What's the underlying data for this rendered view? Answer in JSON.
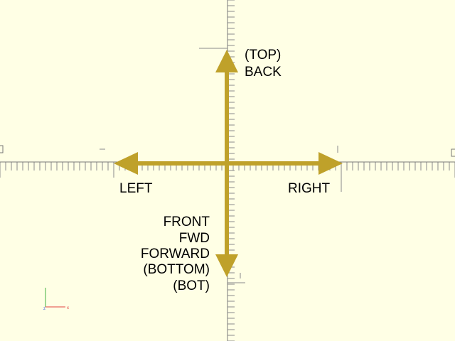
{
  "viewport": {
    "background": "#FFFFE5",
    "axis_color": "#666666",
    "arrow_color": "#BFA12A",
    "axes_gizmo": {
      "x_color": "#E04040",
      "y_color": "#40B040",
      "z_color": "#4060E0"
    }
  },
  "labels": {
    "top": "(TOP)",
    "back": "BACK",
    "left": "LEFT",
    "right": "RIGHT",
    "front": "FRONT",
    "fwd": "FWD",
    "forward": "FORWARD",
    "bottom": "(BOTTOM)",
    "bot": "(BOT)"
  },
  "icons": {
    "axes_gizmo": "xyz-axes-icon"
  }
}
